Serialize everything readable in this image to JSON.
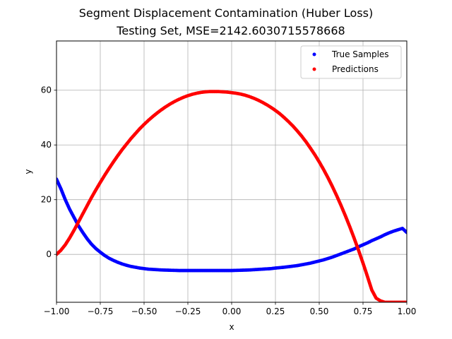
{
  "chart_data": {
    "type": "scatter",
    "title": "Segment Displacement Contamination (Huber Loss)",
    "subtitle": "Testing Set, MSE=2142.6030715578668",
    "xlabel": "x",
    "ylabel": "y",
    "xlim": [
      -1.0,
      1.0
    ],
    "ylim": [
      -17.5,
      78.0
    ],
    "xticks": [
      -1.0,
      -0.75,
      -0.5,
      -0.25,
      0.0,
      0.25,
      0.5,
      0.75,
      1.0
    ],
    "xtick_labels": [
      "−1.00",
      "−0.75",
      "−0.50",
      "−0.25",
      "0.00",
      "0.25",
      "0.50",
      "0.75",
      "1.00"
    ],
    "yticks": [
      0,
      20,
      40,
      60
    ],
    "ytick_labels": [
      "0",
      "20",
      "40",
      "60"
    ],
    "grid": true,
    "legend": "top-right",
    "series": [
      {
        "name": "True Samples",
        "color": "#0000ff",
        "x": [
          -1.0,
          -0.975,
          -0.95,
          -0.925,
          -0.9,
          -0.875,
          -0.85,
          -0.825,
          -0.8,
          -0.775,
          -0.75,
          -0.725,
          -0.7,
          -0.675,
          -0.65,
          -0.625,
          -0.6,
          -0.575,
          -0.55,
          -0.525,
          -0.5,
          -0.475,
          -0.45,
          -0.425,
          -0.4,
          -0.375,
          -0.35,
          -0.325,
          -0.3,
          -0.275,
          -0.25,
          -0.225,
          -0.2,
          -0.175,
          -0.15,
          -0.125,
          -0.1,
          -0.075,
          -0.05,
          -0.025,
          0.0,
          0.025,
          0.05,
          0.075,
          0.1,
          0.125,
          0.15,
          0.175,
          0.2,
          0.225,
          0.25,
          0.275,
          0.3,
          0.325,
          0.35,
          0.375,
          0.4,
          0.425,
          0.45,
          0.475,
          0.5,
          0.525,
          0.55,
          0.575,
          0.6,
          0.625,
          0.65,
          0.675,
          0.7,
          0.725,
          0.75,
          0.775,
          0.8,
          0.825,
          0.85,
          0.875,
          0.9,
          0.925,
          0.95,
          0.975,
          1.0
        ],
        "y": [
          27.5,
          24.0,
          20.0,
          16.5,
          13.5,
          10.5,
          8.0,
          5.7,
          3.7,
          2.1,
          0.8,
          -0.4,
          -1.4,
          -2.2,
          -2.9,
          -3.5,
          -4.0,
          -4.4,
          -4.7,
          -5.0,
          -5.2,
          -5.4,
          -5.5,
          -5.6,
          -5.7,
          -5.75,
          -5.8,
          -5.85,
          -5.9,
          -5.9,
          -5.9,
          -5.9,
          -5.9,
          -5.9,
          -5.9,
          -5.9,
          -5.9,
          -5.9,
          -5.9,
          -5.9,
          -5.9,
          -5.85,
          -5.8,
          -5.75,
          -5.7,
          -5.6,
          -5.5,
          -5.4,
          -5.3,
          -5.2,
          -5.0,
          -4.85,
          -4.7,
          -4.5,
          -4.3,
          -4.1,
          -3.8,
          -3.5,
          -3.2,
          -2.8,
          -2.4,
          -2.0,
          -1.5,
          -1.0,
          -0.4,
          0.2,
          0.8,
          1.4,
          2.0,
          2.8,
          3.5,
          4.2,
          5.0,
          5.7,
          6.4,
          7.2,
          7.9,
          8.5,
          9.0,
          9.5,
          8.0
        ]
      },
      {
        "name": "Predictions",
        "color": "#ff0000",
        "x": [
          -1.0,
          -0.975,
          -0.95,
          -0.925,
          -0.9,
          -0.875,
          -0.85,
          -0.825,
          -0.8,
          -0.775,
          -0.75,
          -0.725,
          -0.7,
          -0.675,
          -0.65,
          -0.625,
          -0.6,
          -0.575,
          -0.55,
          -0.525,
          -0.5,
          -0.475,
          -0.45,
          -0.425,
          -0.4,
          -0.375,
          -0.35,
          -0.325,
          -0.3,
          -0.275,
          -0.25,
          -0.225,
          -0.2,
          -0.175,
          -0.15,
          -0.125,
          -0.1,
          -0.075,
          -0.05,
          -0.025,
          0.0,
          0.025,
          0.05,
          0.075,
          0.1,
          0.125,
          0.15,
          0.175,
          0.2,
          0.225,
          0.25,
          0.275,
          0.3,
          0.325,
          0.35,
          0.375,
          0.4,
          0.425,
          0.45,
          0.475,
          0.5,
          0.525,
          0.55,
          0.575,
          0.6,
          0.625,
          0.65,
          0.675,
          0.7,
          0.725,
          0.75,
          0.775,
          0.8,
          0.825,
          0.85,
          0.875,
          0.9,
          0.925,
          0.95,
          0.975,
          1.0
        ],
        "y": [
          0.0,
          1.5,
          3.5,
          6.0,
          8.8,
          11.8,
          14.8,
          17.8,
          20.8,
          23.6,
          26.3,
          28.9,
          31.4,
          33.8,
          36.1,
          38.3,
          40.3,
          42.3,
          44.1,
          45.9,
          47.5,
          49.0,
          50.4,
          51.7,
          52.9,
          54.0,
          55.0,
          55.9,
          56.7,
          57.4,
          58.0,
          58.5,
          58.9,
          59.2,
          59.4,
          59.5,
          59.5,
          59.5,
          59.4,
          59.3,
          59.1,
          58.9,
          58.6,
          58.2,
          57.7,
          57.1,
          56.4,
          55.6,
          54.7,
          53.7,
          52.6,
          51.4,
          50.0,
          48.5,
          46.9,
          45.1,
          43.2,
          41.1,
          38.8,
          36.4,
          33.8,
          31.0,
          28.0,
          24.8,
          21.4,
          17.8,
          14.0,
          10.0,
          5.8,
          1.4,
          -3.2,
          -8.0,
          -13.0,
          -16.0,
          -17.0,
          -17.5,
          -17.5,
          -17.5,
          -17.5,
          -17.5,
          -17.5
        ]
      }
    ]
  }
}
